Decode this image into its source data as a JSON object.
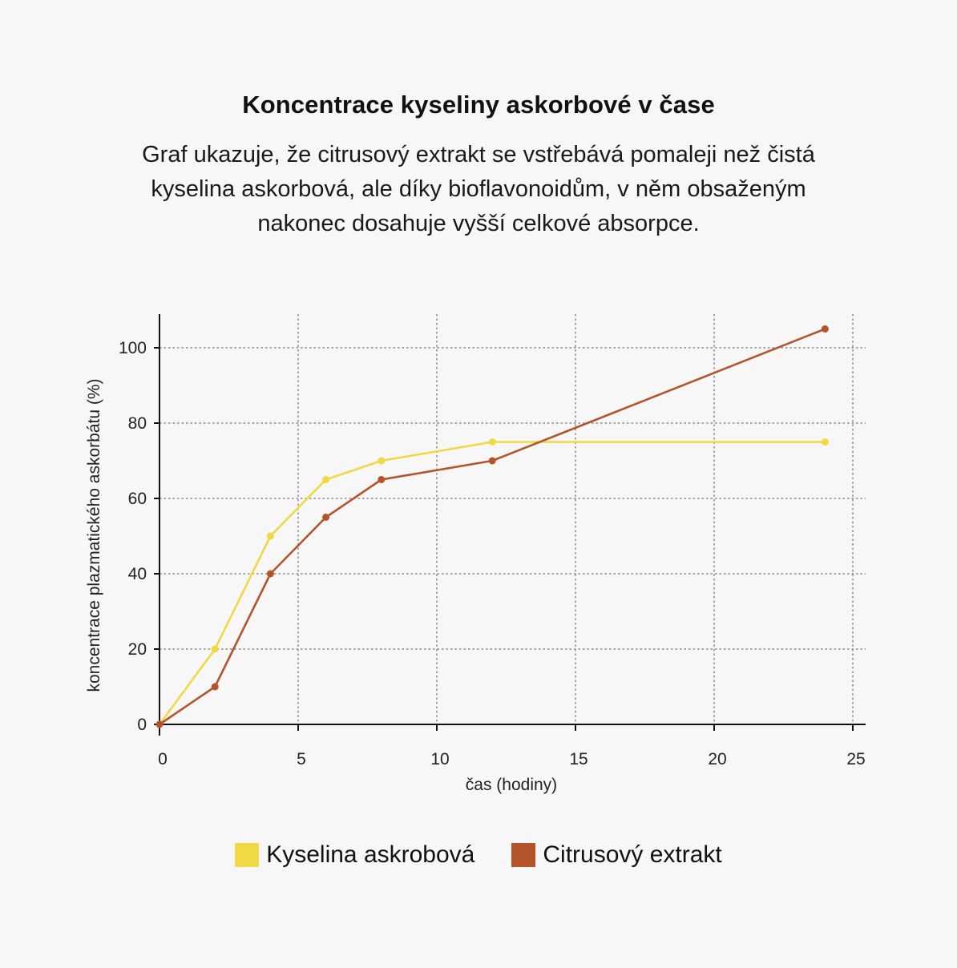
{
  "title": "Koncentrace kyseliny askorbové v čase",
  "subtitle": "Graf ukazuje, že citrusový extrakt se vstřebává pomaleji než čistá kyselina askorbová, ale díky bioflavonoidům, v něm obsaženým nakonec dosahuje vyšší celkové absorpce.",
  "chart_data": {
    "type": "line",
    "xlabel": "čas (hodiny)",
    "ylabel": "koncentrace plazmatického askorbátu (%)",
    "xlim": [
      0,
      25
    ],
    "ylim": [
      0,
      110
    ],
    "xticks": [
      0,
      5,
      10,
      15,
      20,
      25
    ],
    "yticks": [
      0,
      20,
      40,
      60,
      80,
      100
    ],
    "grid": true,
    "legend_position": "bottom",
    "series": [
      {
        "name": "Kyselina askrobová",
        "color": "#f0d944",
        "points": [
          [
            0,
            0
          ],
          [
            2,
            20
          ],
          [
            4,
            50
          ],
          [
            6,
            65
          ],
          [
            8,
            70
          ],
          [
            12,
            75
          ],
          [
            24,
            75
          ]
        ]
      },
      {
        "name": "Citrusový extrakt",
        "color": "#b5532a",
        "points": [
          [
            0,
            0
          ],
          [
            2,
            10
          ],
          [
            4,
            40
          ],
          [
            6,
            55
          ],
          [
            8,
            65
          ],
          [
            12,
            70
          ],
          [
            24,
            105
          ]
        ]
      }
    ]
  }
}
